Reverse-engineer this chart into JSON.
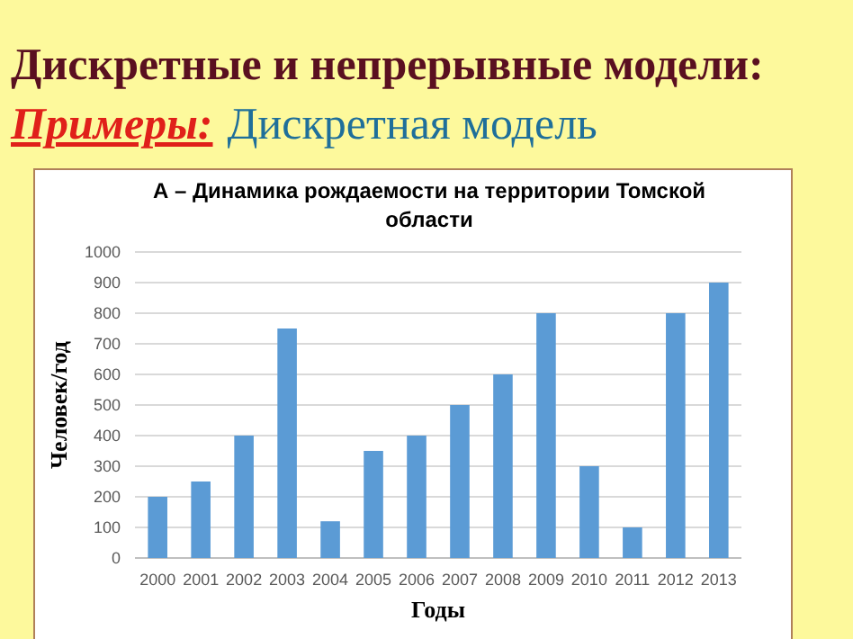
{
  "chart_data": {
    "type": "bar",
    "title": "А – Динамика рождаемости на территории Томской области",
    "xlabel": "Годы",
    "ylabel": "Человек/год",
    "annotations": [
      "Дискретные и непрерывные модели:",
      "Примеры:",
      "Дискретная модель"
    ],
    "categories": [
      "2000",
      "2001",
      "2002",
      "2003",
      "2004",
      "2005",
      "2006",
      "2007",
      "2008",
      "2009",
      "2010",
      "2011",
      "2012",
      "2013"
    ],
    "values": [
      200,
      250,
      400,
      750,
      120,
      350,
      400,
      500,
      600,
      800,
      300,
      100,
      800,
      900
    ],
    "color": "#5b9bd5",
    "ylim": [
      0,
      1000
    ],
    "yticks": [
      0,
      100,
      200,
      300,
      400,
      500,
      600,
      700,
      800,
      900,
      1000
    ],
    "grid": "y"
  }
}
